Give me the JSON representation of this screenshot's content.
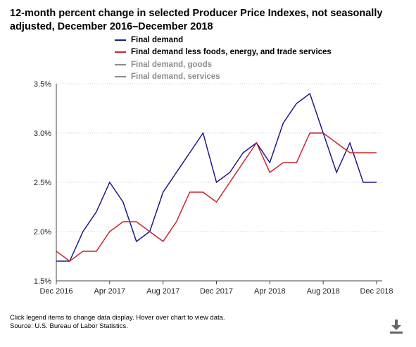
{
  "title": "12-month percent change in selected Producer Price Indexes, not seasonally adjusted, December 2016–December 2018",
  "legend": [
    {
      "label": "Final demand",
      "color": "#1a1a8c",
      "visible": true
    },
    {
      "label": "Final demand less foods, energy, and trade services",
      "color": "#c8242f",
      "visible": true
    },
    {
      "label": "Final demand, goods",
      "color": "#8c8c8c",
      "visible": false
    },
    {
      "label": "Final demand, services",
      "color": "#8c8c8c",
      "visible": false
    }
  ],
  "footer": {
    "note": "Click legend items to change data display. Hover over chart to view data.",
    "source": "Source: U.S. Bureau of Labor Statistics."
  },
  "download_icon": "download-icon",
  "chart_data": {
    "type": "line",
    "title": "12-month percent change in selected Producer Price Indexes, not seasonally adjusted, December 2016–December 2018",
    "x": [
      "Dec 2016",
      "Jan 2017",
      "Feb 2017",
      "Mar 2017",
      "Apr 2017",
      "May 2017",
      "Jun 2017",
      "Jul 2017",
      "Aug 2017",
      "Sep 2017",
      "Oct 2017",
      "Nov 2017",
      "Dec 2017",
      "Jan 2018",
      "Feb 2018",
      "Mar 2018",
      "Apr 2018",
      "May 2018",
      "Jun 2018",
      "Jul 2018",
      "Aug 2018",
      "Sep 2018",
      "Oct 2018",
      "Nov 2018",
      "Dec 2018"
    ],
    "x_tick_labels": [
      "Dec 2016",
      "Apr 2017",
      "Aug 2017",
      "Dec 2017",
      "Apr 2018",
      "Aug 2018",
      "Dec 2018"
    ],
    "y_tick_labels": [
      "1.5%",
      "2.0%",
      "2.5%",
      "3.0%",
      "3.5%"
    ],
    "ylim": [
      1.5,
      3.5
    ],
    "grid": "horizontal dotted",
    "series": [
      {
        "name": "Final demand",
        "color": "#1a1a8c",
        "values": [
          1.7,
          1.7,
          2.0,
          2.2,
          2.5,
          2.3,
          1.9,
          2.0,
          2.4,
          2.6,
          2.8,
          3.0,
          2.5,
          2.6,
          2.8,
          2.9,
          2.7,
          3.1,
          3.3,
          3.4,
          3.0,
          2.6,
          2.9,
          2.5,
          2.5
        ]
      },
      {
        "name": "Final demand less foods, energy, and trade services",
        "color": "#c8242f",
        "values": [
          1.8,
          1.7,
          1.8,
          1.8,
          2.0,
          2.1,
          2.1,
          2.0,
          1.9,
          2.1,
          2.4,
          2.4,
          2.3,
          2.5,
          2.7,
          2.9,
          2.6,
          2.7,
          2.7,
          3.0,
          3.0,
          2.9,
          2.8,
          2.8,
          2.8
        ]
      }
    ]
  }
}
